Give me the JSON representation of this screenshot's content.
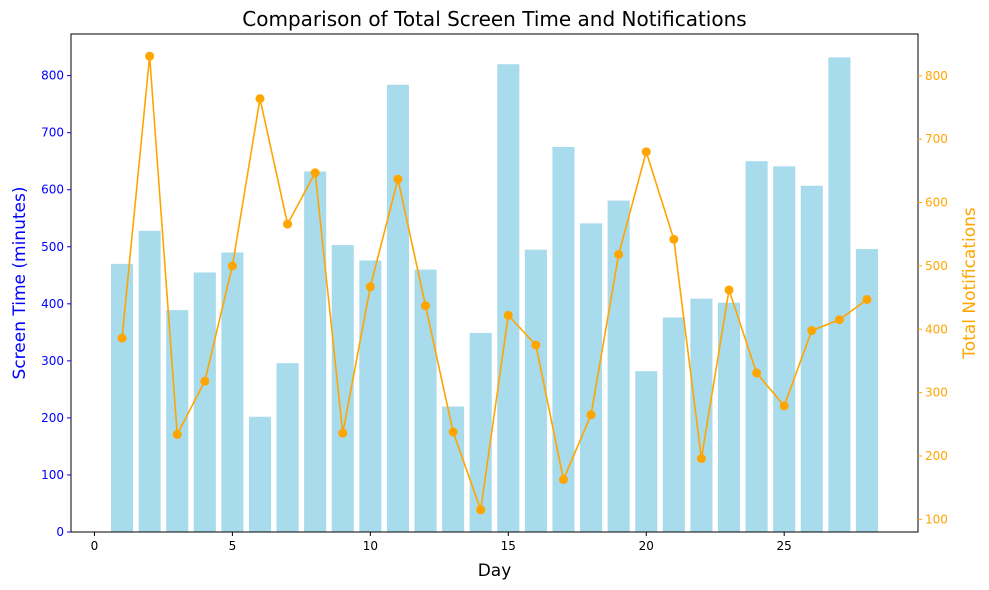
{
  "chart_data": {
    "type": "bar",
    "title": "Comparison of Total Screen Time and Notifications",
    "xlabel": "Day",
    "ylabel_left": "Screen Time (minutes)",
    "ylabel_right": "Total Notifications",
    "x": [
      1,
      2,
      3,
      4,
      5,
      6,
      7,
      8,
      9,
      10,
      11,
      12,
      13,
      14,
      15,
      16,
      17,
      18,
      19,
      20,
      21,
      22,
      23,
      24,
      25,
      26,
      27,
      28
    ],
    "xlim": [
      -0.85,
      29.85
    ],
    "xticks": [
      0,
      5,
      10,
      15,
      20,
      25
    ],
    "ylim_left": [
      0,
      873
    ],
    "yticks_left": [
      0,
      100,
      200,
      300,
      400,
      500,
      600,
      700,
      800
    ],
    "ylim_right": [
      80,
      866
    ],
    "yticks_right": [
      100,
      200,
      300,
      400,
      500,
      600,
      700,
      800
    ],
    "grid": false,
    "series": [
      {
        "name": "",
        "type": "bar",
        "axis": "left",
        "color": "#a8dbec",
        "values": [
          470,
          528,
          389,
          455,
          490,
          202,
          296,
          632,
          503,
          476,
          784,
          460,
          220,
          349,
          820,
          495,
          675,
          541,
          581,
          282,
          376,
          409,
          402,
          650,
          641,
          607,
          832,
          496
        ]
      },
      {
        "name": "",
        "type": "line",
        "axis": "right",
        "color": "#ffa500",
        "marker": "circle",
        "values": [
          386,
          831,
          234,
          318,
          500,
          764,
          566,
          647,
          236,
          467,
          637,
          437,
          238,
          115,
          422,
          375,
          163,
          265,
          518,
          680,
          542,
          196,
          462,
          331,
          279,
          398,
          415,
          447
        ]
      }
    ],
    "colors": {
      "left_axis": "#0000ff",
      "right_axis": "#ffa500",
      "frame": "#000000"
    }
  }
}
